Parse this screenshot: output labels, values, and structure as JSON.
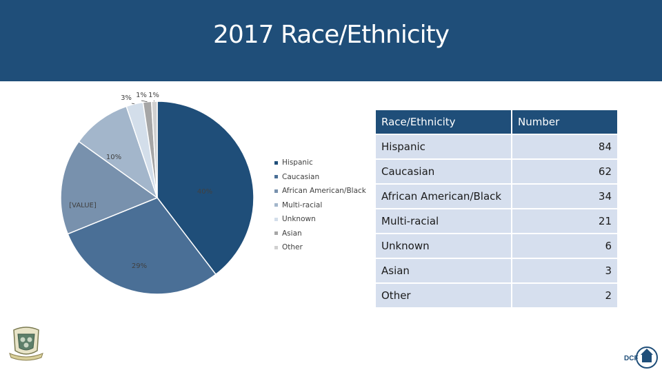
{
  "header": {
    "title": "2017 Race/Ethnicity"
  },
  "chart_data": {
    "type": "pie",
    "title": "",
    "slices": [
      {
        "name": "Hispanic",
        "value": 84,
        "label": "40%",
        "color": "#1f4e79"
      },
      {
        "name": "Caucasian",
        "value": 62,
        "label": "29%",
        "color": "#4a6f96"
      },
      {
        "name": "African American/Black",
        "value": 34,
        "label": "[VALUE]",
        "color": "#7891ad"
      },
      {
        "name": "Multi-racial",
        "value": 21,
        "label": "10%",
        "color": "#a3b6cb"
      },
      {
        "name": "Unknown",
        "value": 6,
        "label": "3%",
        "color": "#d3deea"
      },
      {
        "name": "Asian",
        "value": 3,
        "label": "1%",
        "color": "#a6a6a6"
      },
      {
        "name": "Other",
        "value": 2,
        "label": "1%",
        "color": "#d0d0d0"
      }
    ],
    "legend_position": "right"
  },
  "table": {
    "headers": [
      "Race/Ethnicity",
      "Number"
    ],
    "rows": [
      [
        "Hispanic",
        "84"
      ],
      [
        "Caucasian",
        "62"
      ],
      [
        "African American/Black",
        "34"
      ],
      [
        "Multi-racial",
        "21"
      ],
      [
        "Unknown",
        "6"
      ],
      [
        "Asian",
        "3"
      ],
      [
        "Other",
        "2"
      ]
    ]
  },
  "logos": {
    "right_text": "DCF"
  }
}
